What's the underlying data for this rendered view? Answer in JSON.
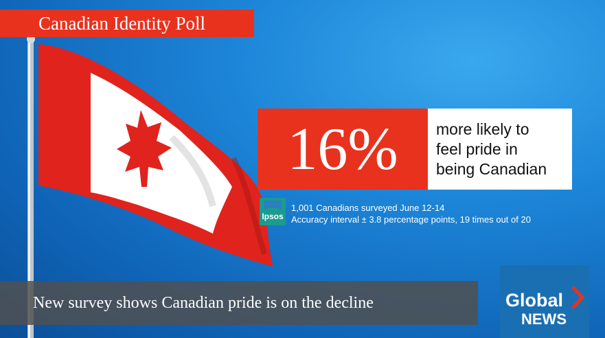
{
  "banner": {
    "title": "Canadian Identity Poll"
  },
  "stat": {
    "value": "16%",
    "line1": "more likely to",
    "line2": "feel pride in",
    "line3": "being Canadian"
  },
  "source": {
    "logo_text": "Ipsos",
    "line1": "1,001 Canadians surveyed June 12-14",
    "line2": "Accuracy interval ± 3.8 percentage points, 19 times out of 20"
  },
  "lower_third": {
    "headline": "New survey shows Canadian pride is on the decline"
  },
  "network": {
    "word1": "Global",
    "word2": "NEWS"
  },
  "colors": {
    "accent_red": "#e8321e",
    "sky_blue": "#1d86d8",
    "logo_blue": "#1a6fb2"
  }
}
